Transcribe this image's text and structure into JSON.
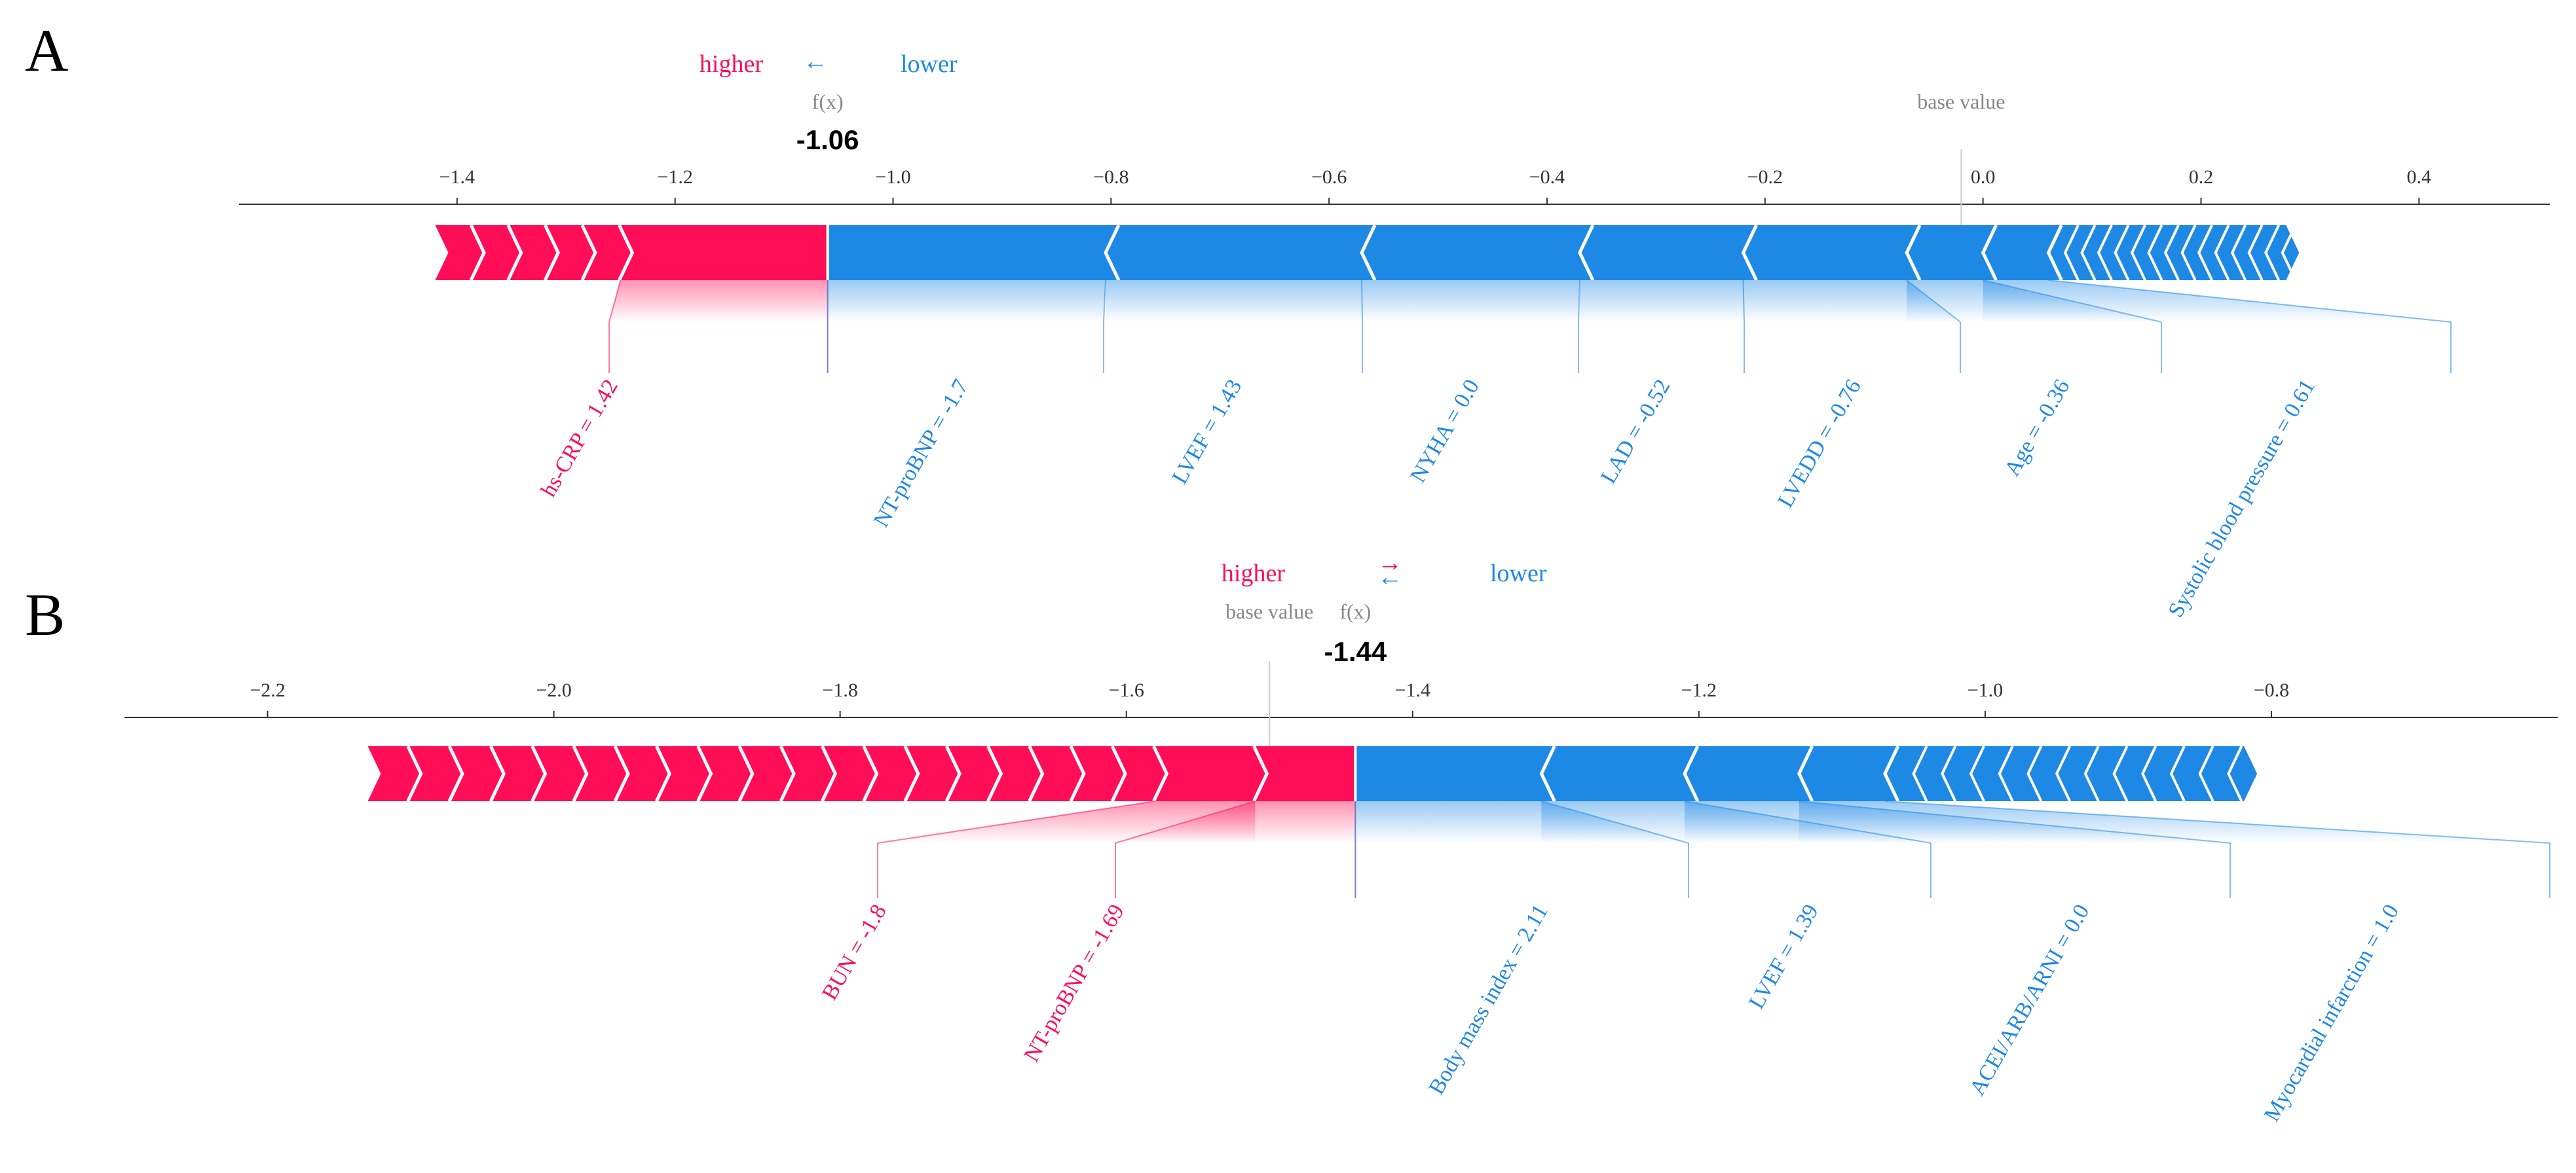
{
  "colors": {
    "positive": "#ff0d57",
    "negative": "#1e88e5",
    "axis": "#333333",
    "muted": "#888888"
  },
  "chart_data": [
    {
      "type": "force",
      "panel_label": "A",
      "title": "",
      "legend": {
        "higher": "higher",
        "arrow": "←",
        "lower": "lower"
      },
      "output_label": "f(x)",
      "output_value": -1.06,
      "output_text": "-1.06",
      "base_label": "base value",
      "base_value": -0.02,
      "xlim": [
        -1.6,
        0.52
      ],
      "ticks": [
        -1.4,
        -1.2,
        -1.0,
        -0.8,
        -0.6,
        -0.4,
        -0.2,
        0.0,
        0.2,
        0.4
      ],
      "tick_labels": [
        "−1.4",
        "−1.2",
        "−1.0",
        "−0.8",
        "−0.6",
        "−0.4",
        "−0.2",
        "0.0",
        "0.2",
        "0.4"
      ],
      "positive_features": [
        {
          "label": "hs-CRP = 1.42",
          "contribution": 0.19
        }
      ],
      "negative_features": [
        {
          "label": "NT-proBNP = -1.7",
          "contribution": 0.255
        },
        {
          "label": "LVEF = 1.43",
          "contribution": 0.235
        },
        {
          "label": "NYHA = 0.0",
          "contribution": 0.2
        },
        {
          "label": "LAD = -0.52",
          "contribution": 0.15
        },
        {
          "label": "LVEDD = -0.76",
          "contribution": 0.15
        },
        {
          "label": "Age = -0.36",
          "contribution": 0.07
        },
        {
          "label": "Systolic blood pressure = 0.61",
          "contribution": 0.06
        }
      ],
      "bar_extent": [
        -1.42,
        0.29
      ]
    },
    {
      "type": "force",
      "panel_label": "B",
      "title": "",
      "legend": {
        "higher": "higher",
        "arrow_right": "→",
        "arrow_left": "←",
        "lower": "lower"
      },
      "output_label": "f(x)",
      "output_value": -1.44,
      "output_text": "-1.44",
      "base_label": "base value",
      "base_value": -1.5,
      "xlim": [
        -2.3,
        -0.6
      ],
      "ticks": [
        -2.2,
        -2.0,
        -1.8,
        -1.6,
        -1.4,
        -1.2,
        -1.0,
        -0.8
      ],
      "tick_labels": [
        "−2.2",
        "−2.0",
        "−1.8",
        "−1.6",
        "−1.4",
        "−1.2",
        "−1.0",
        "−0.8"
      ],
      "positive_features": [
        {
          "label": "NT-proBNP = -1.69",
          "contribution": 0.07
        },
        {
          "label": "BUN = -1.8",
          "contribution": 0.07
        }
      ],
      "negative_features": [
        {
          "label": "Body mass index = 2.11",
          "contribution": 0.13
        },
        {
          "label": "LVEF = 1.39",
          "contribution": 0.1
        },
        {
          "label": "ACEI/ARB/ARNI = 0.0",
          "contribution": 0.08
        },
        {
          "label": "Myocardial infarction = 1.0",
          "contribution": 0.06
        }
      ],
      "bar_extent": [
        -2.13,
        -0.81
      ]
    }
  ]
}
